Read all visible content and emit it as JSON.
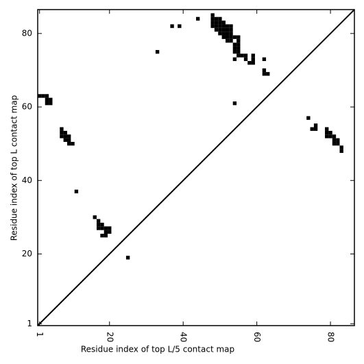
{
  "chart_data": {
    "type": "contact-map",
    "xlabel": "Residue index of top L/5 contact map",
    "ylabel": "Residue index of top L contact map",
    "color": "#000000",
    "xlim": [
      0.5,
      86.5
    ],
    "ylim": [
      0.5,
      86.5
    ],
    "xticks": [
      1,
      20,
      40,
      60,
      80
    ],
    "yticks": [
      1,
      20,
      40,
      60,
      80
    ],
    "x": [
      1,
      2,
      3,
      3,
      4,
      3,
      4,
      7,
      7,
      8,
      7,
      8,
      9,
      8,
      9,
      9,
      10,
      11,
      16,
      17,
      17,
      18,
      17,
      18,
      19,
      20,
      19,
      20,
      18,
      19,
      25,
      33,
      37,
      39,
      44,
      48,
      48,
      49,
      50,
      48,
      49,
      50,
      51,
      48,
      49,
      50,
      51,
      52,
      53,
      49,
      50,
      51,
      52,
      53,
      50,
      51,
      52,
      53,
      51,
      52,
      53,
      54,
      55,
      52,
      53,
      55,
      54,
      55,
      54,
      55,
      54,
      55,
      55,
      56,
      57,
      59,
      54,
      57,
      59,
      62,
      58,
      59,
      62,
      62,
      63,
      54,
      74,
      75,
      76,
      76,
      79,
      79,
      80,
      79,
      80,
      81,
      81,
      82,
      81,
      82,
      83,
      83
    ],
    "y": [
      63,
      63,
      63,
      62,
      62,
      61,
      61,
      54,
      53,
      53,
      52,
      52,
      52,
      51,
      51,
      50,
      50,
      37,
      30,
      29,
      28,
      28,
      27,
      27,
      27,
      27,
      26,
      26,
      25,
      25,
      19,
      75,
      82,
      82,
      84,
      85,
      84,
      84,
      84,
      83,
      83,
      83,
      83,
      82,
      82,
      82,
      82,
      82,
      82,
      81,
      81,
      81,
      81,
      81,
      80,
      80,
      80,
      80,
      79,
      79,
      79,
      79,
      79,
      78,
      78,
      78,
      77,
      77,
      76,
      76,
      75,
      75,
      74,
      74,
      74,
      74,
      73,
      73,
      73,
      73,
      72,
      72,
      70,
      69,
      69,
      61,
      57,
      54,
      54,
      55,
      54,
      53,
      53,
      52,
      52,
      52,
      51,
      51,
      50,
      50,
      49,
      48
    ]
  }
}
